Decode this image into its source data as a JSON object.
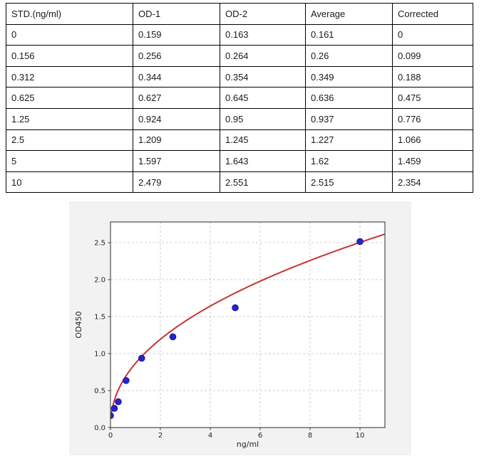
{
  "table": {
    "headers": [
      "STD.(ng/ml)",
      "OD-1",
      "OD-2",
      "Average",
      "Corrected"
    ],
    "rows": [
      [
        "0",
        "0.159",
        "0.163",
        "0.161",
        "0"
      ],
      [
        "0.156",
        "0.256",
        "0.264",
        "0.26",
        "0.099"
      ],
      [
        "0.312",
        "0.344",
        "0.354",
        "0.349",
        "0.188"
      ],
      [
        "0.625",
        "0.627",
        "0.645",
        "0.636",
        "0.475"
      ],
      [
        "1.25",
        "0.924",
        "0.95",
        "0.937",
        "0.776"
      ],
      [
        "2.5",
        "1.209",
        "1.245",
        "1.227",
        "1.066"
      ],
      [
        "5",
        "1.597",
        "1.643",
        "1.62",
        "1.459"
      ],
      [
        "10",
        "2.479",
        "2.551",
        "2.515",
        "2.354"
      ]
    ]
  },
  "chart_data": {
    "type": "scatter",
    "title": "",
    "xlabel": "ng/ml",
    "ylabel": "OD450",
    "xlim": [
      0,
      11
    ],
    "ylim": [
      0,
      2.78
    ],
    "xticks": [
      0,
      2,
      4,
      6,
      8,
      10
    ],
    "xtick_labels": [
      "0",
      "2",
      "4",
      "6",
      "8",
      "10"
    ],
    "yticks": [
      0,
      0.5,
      1.0,
      1.5,
      2.0,
      2.5
    ],
    "ytick_labels": [
      "0.0",
      "0.5",
      "1.0",
      "1.5",
      "2.0",
      "2.5"
    ],
    "grid": true,
    "legend_position": "none",
    "series": [
      {
        "name": "standard-points",
        "type": "scatter",
        "x": [
          0,
          0.156,
          0.312,
          0.625,
          1.25,
          2.5,
          5,
          10
        ],
        "y": [
          0.161,
          0.26,
          0.349,
          0.636,
          0.937,
          1.227,
          1.62,
          2.515
        ],
        "color": "#2424cc",
        "marker_edge": "#12128a",
        "marker_radius": 4.4
      },
      {
        "name": "fit-curve",
        "type": "power-fit",
        "model": "y = a * x^b",
        "a": 0.868,
        "b": 0.46,
        "x_start": 0.02,
        "x_end": 11,
        "color": "#c83232",
        "line_width": 2
      }
    ],
    "colors": {
      "panel_background": "#f2f2f2",
      "plot_background": "#ffffff",
      "grid": "#c9c9c9",
      "spine": "#4d4d4d",
      "tick_text": "#262626"
    }
  }
}
